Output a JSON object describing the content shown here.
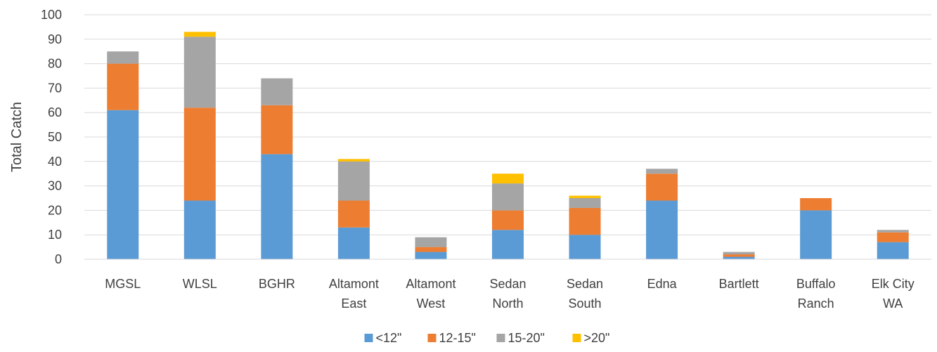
{
  "chart_data": {
    "type": "bar",
    "stacked": true,
    "ylabel": "Total Catch",
    "xlabel": "",
    "title": "",
    "ylim": [
      0,
      100
    ],
    "ytick_step": 10,
    "grid": true,
    "legend_position": "bottom",
    "categories": [
      [
        "MGSL"
      ],
      [
        "WLSL"
      ],
      [
        "BGHR"
      ],
      [
        "Altamont",
        "East"
      ],
      [
        "Altamont",
        "West"
      ],
      [
        "Sedan",
        "North"
      ],
      [
        "Sedan",
        "South"
      ],
      [
        "Edna"
      ],
      [
        "Bartlett"
      ],
      [
        "Buffalo",
        "Ranch"
      ],
      [
        "Elk City",
        "WA"
      ]
    ],
    "series": [
      {
        "name": "<12\"",
        "color": "#5B9BD5",
        "values": [
          61,
          24,
          43,
          13,
          3,
          12,
          10,
          24,
          1,
          20,
          7
        ]
      },
      {
        "name": "12-15\"",
        "color": "#ED7D31",
        "values": [
          19,
          38,
          20,
          11,
          2,
          8,
          11,
          11,
          1,
          5,
          4
        ]
      },
      {
        "name": "15-20\"",
        "color": "#A5A5A5",
        "values": [
          5,
          29,
          11,
          16,
          4,
          11,
          4,
          2,
          1,
          0,
          1
        ]
      },
      {
        "name": ">20\"",
        "color": "#FFC000",
        "values": [
          0,
          2,
          0,
          1,
          0,
          4,
          1,
          0,
          0,
          0,
          0
        ]
      }
    ]
  }
}
